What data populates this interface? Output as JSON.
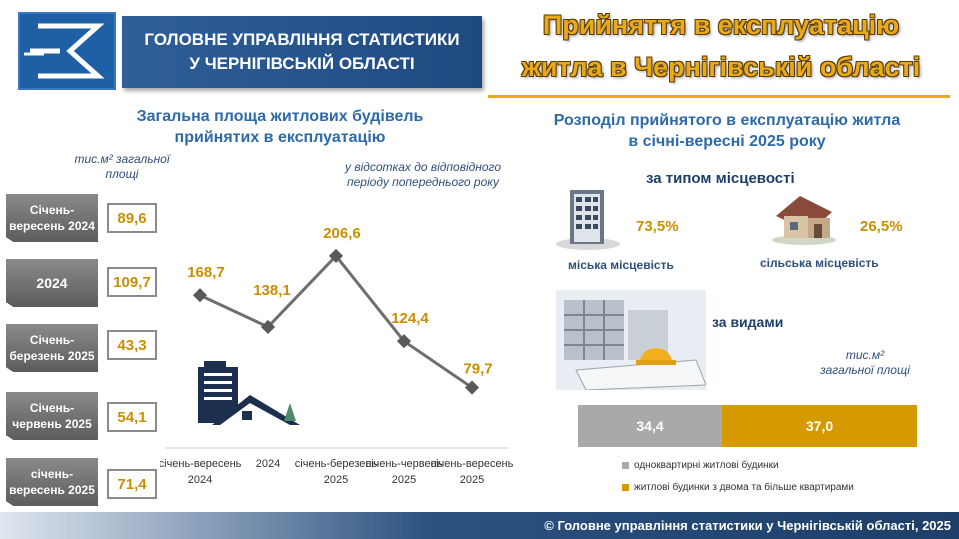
{
  "header": {
    "org_line1": "ГОЛОВНЕ УПРАВЛІННЯ СТАТИСТИКИ",
    "org_line2": "У ЧЕРНІГІВСЬКІЙ ОБЛАСТІ",
    "title_line1": "Прийняття в експлуатацію",
    "title_line2": "житла в Чернігівській області"
  },
  "left": {
    "title_line1": "Загальна площа житлових будівель",
    "title_line2": "прийнятих в експлуатацію",
    "unit_line1": "тис.м² загальної",
    "unit_line2": "площі",
    "percent_note_line1": "у відсотках до відповідного",
    "percent_note_line2": "періоду попереднього року",
    "periods": [
      {
        "label": "Січень-вересень 2024",
        "value": "89,6"
      },
      {
        "label": "2024",
        "value": "109,7"
      },
      {
        "label": "Січень-березень 2025",
        "value": "43,3"
      },
      {
        "label": "Січень-червень 2025",
        "value": "54,1"
      },
      {
        "label": "січень-вересень 2025",
        "value": "71,4"
      }
    ]
  },
  "chart_data": {
    "type": "line",
    "categories": [
      "січень-вересень 2024",
      "2024",
      "січень-березень 2025",
      "січень-червень 2025",
      "січень-вересень 2025"
    ],
    "values": [
      168.7,
      138.1,
      206.6,
      124.4,
      79.7
    ],
    "labels": [
      "168,7",
      "138,1",
      "206,6",
      "124,4",
      "79,7"
    ],
    "ylim": [
      60,
      220
    ],
    "grid": false,
    "line_color": "#6e6e6e",
    "label_color": "#c98f00"
  },
  "right": {
    "title_line1": "Розподіл прийнятого в експлуатацію житла",
    "title_line2": "в січні-вересні 2025 року",
    "by_locality": "за типом місцевості",
    "urban_pct": "73,5%",
    "urban_label": "міська місцевість",
    "rural_pct": "26,5%",
    "rural_label": "сільська місцевість",
    "by_type": "за видами",
    "unit_line1": "тис.м²",
    "unit_line2": "загальної площі",
    "bar_single": "34,4",
    "bar_multi": "37,0",
    "legend_single": "одноквартирні житлові будинки",
    "legend_multi": "житлові будинки з двома та більше квартирами",
    "color_single": "#a9a9a9",
    "color_multi": "#d49a00"
  },
  "footer": {
    "text": "© Головне управління статистики у Чернігівській області, 2025"
  }
}
